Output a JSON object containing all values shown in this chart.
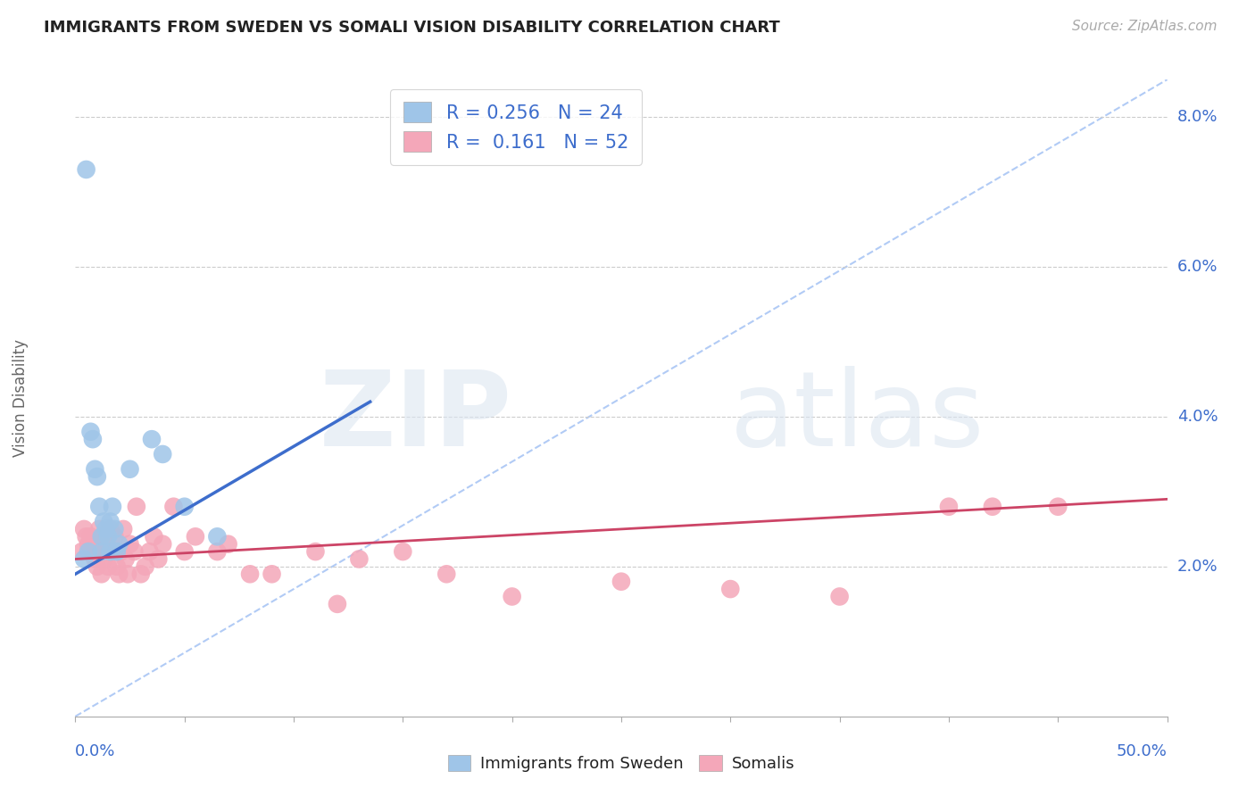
{
  "title": "IMMIGRANTS FROM SWEDEN VS SOMALI VISION DISABILITY CORRELATION CHART",
  "source": "Source: ZipAtlas.com",
  "ylabel": "Vision Disability",
  "y_ticks": [
    0.02,
    0.04,
    0.06,
    0.08
  ],
  "y_tick_labels": [
    "2.0%",
    "4.0%",
    "6.0%",
    "8.0%"
  ],
  "xlim": [
    0.0,
    0.5
  ],
  "ylim": [
    0.0,
    0.085
  ],
  "legend_r1": "R = 0.256",
  "legend_n1": "N = 24",
  "legend_r2": "R =  0.161",
  "legend_n2": "N = 52",
  "color_sweden": "#9fc5e8",
  "color_somali": "#f4a7b9",
  "color_sweden_line": "#3d6dcc",
  "color_somali_line": "#cc4466",
  "color_diag": "#a4c2f4",
  "color_axis_label": "#3d6dcc",
  "sweden_x": [
    0.004,
    0.006,
    0.007,
    0.008,
    0.009,
    0.01,
    0.011,
    0.012,
    0.012,
    0.013,
    0.014,
    0.015,
    0.016,
    0.016,
    0.017,
    0.018,
    0.019,
    0.02,
    0.025,
    0.035,
    0.04,
    0.05,
    0.065,
    0.005
  ],
  "sweden_y": [
    0.021,
    0.022,
    0.038,
    0.037,
    0.033,
    0.032,
    0.028,
    0.024,
    0.022,
    0.026,
    0.025,
    0.024,
    0.022,
    0.026,
    0.028,
    0.025,
    0.022,
    0.023,
    0.033,
    0.037,
    0.035,
    0.028,
    0.024,
    0.073
  ],
  "somali_x": [
    0.003,
    0.004,
    0.005,
    0.006,
    0.007,
    0.008,
    0.009,
    0.01,
    0.011,
    0.011,
    0.012,
    0.013,
    0.013,
    0.014,
    0.015,
    0.016,
    0.017,
    0.018,
    0.019,
    0.02,
    0.021,
    0.022,
    0.023,
    0.024,
    0.025,
    0.027,
    0.028,
    0.03,
    0.032,
    0.034,
    0.036,
    0.038,
    0.04,
    0.045,
    0.05,
    0.055,
    0.065,
    0.07,
    0.08,
    0.09,
    0.11,
    0.13,
    0.15,
    0.2,
    0.25,
    0.3,
    0.35,
    0.4,
    0.42,
    0.45,
    0.12,
    0.17
  ],
  "somali_y": [
    0.022,
    0.025,
    0.024,
    0.023,
    0.024,
    0.022,
    0.021,
    0.02,
    0.022,
    0.025,
    0.019,
    0.021,
    0.024,
    0.023,
    0.02,
    0.025,
    0.022,
    0.024,
    0.02,
    0.019,
    0.022,
    0.025,
    0.021,
    0.019,
    0.023,
    0.022,
    0.028,
    0.019,
    0.02,
    0.022,
    0.024,
    0.021,
    0.023,
    0.028,
    0.022,
    0.024,
    0.022,
    0.023,
    0.019,
    0.019,
    0.022,
    0.021,
    0.022,
    0.016,
    0.018,
    0.017,
    0.016,
    0.028,
    0.028,
    0.028,
    0.015,
    0.019
  ],
  "sweden_trend_x0": 0.0,
  "sweden_trend_y0": 0.019,
  "sweden_trend_x1": 0.135,
  "sweden_trend_y1": 0.042,
  "somali_trend_x0": 0.0,
  "somali_trend_y0": 0.021,
  "somali_trend_x1": 0.5,
  "somali_trend_y1": 0.029
}
